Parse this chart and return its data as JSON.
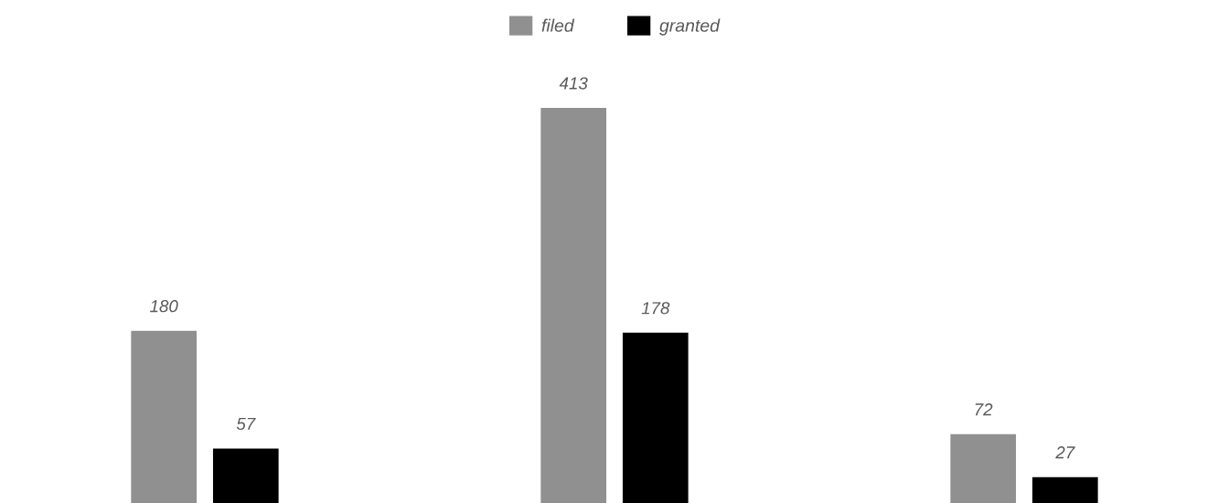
{
  "chart_data": {
    "type": "bar",
    "categories": [
      null,
      null,
      null
    ],
    "series": [
      {
        "name": "filed",
        "color": "#909090",
        "values": [
          180,
          413,
          72
        ]
      },
      {
        "name": "granted",
        "color": "#000000",
        "values": [
          57,
          178,
          27
        ]
      }
    ],
    "data_labels": true,
    "legend": "top"
  }
}
